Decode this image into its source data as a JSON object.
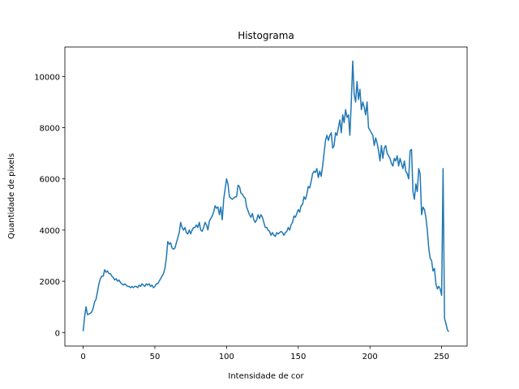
{
  "chart_data": {
    "type": "line",
    "title": "Histograma",
    "xlabel": "Intensidade de cor",
    "ylabel": "Quantidade de pixels",
    "color": "#1f77b4",
    "grid": false,
    "xlim": [
      -12.75,
      267.75
    ],
    "ylim": [
      -530,
      11150
    ],
    "xticks": [
      0,
      50,
      100,
      150,
      200,
      250
    ],
    "yticks": [
      0,
      2000,
      4000,
      6000,
      8000,
      10000
    ],
    "x": [
      0,
      1,
      2,
      3,
      4,
      5,
      6,
      7,
      8,
      9,
      10,
      11,
      12,
      13,
      14,
      15,
      16,
      17,
      18,
      19,
      20,
      21,
      22,
      23,
      24,
      25,
      26,
      27,
      28,
      29,
      30,
      31,
      32,
      33,
      34,
      35,
      36,
      37,
      38,
      39,
      40,
      41,
      42,
      43,
      44,
      45,
      46,
      47,
      48,
      49,
      50,
      51,
      52,
      53,
      54,
      55,
      56,
      57,
      58,
      59,
      60,
      61,
      62,
      63,
      64,
      65,
      66,
      67,
      68,
      69,
      70,
      71,
      72,
      73,
      74,
      75,
      76,
      77,
      78,
      79,
      80,
      81,
      82,
      83,
      84,
      85,
      86,
      87,
      88,
      89,
      90,
      91,
      92,
      93,
      94,
      95,
      96,
      97,
      98,
      99,
      100,
      101,
      102,
      103,
      104,
      105,
      106,
      107,
      108,
      109,
      110,
      111,
      112,
      113,
      114,
      115,
      116,
      117,
      118,
      119,
      120,
      121,
      122,
      123,
      124,
      125,
      126,
      127,
      128,
      129,
      130,
      131,
      132,
      133,
      134,
      135,
      136,
      137,
      138,
      139,
      140,
      141,
      142,
      143,
      144,
      145,
      146,
      147,
      148,
      149,
      150,
      151,
      152,
      153,
      154,
      155,
      156,
      157,
      158,
      159,
      160,
      161,
      162,
      163,
      164,
      165,
      166,
      167,
      168,
      169,
      170,
      171,
      172,
      173,
      174,
      175,
      176,
      177,
      178,
      179,
      180,
      181,
      182,
      183,
      184,
      185,
      186,
      187,
      188,
      189,
      190,
      191,
      192,
      193,
      194,
      195,
      196,
      197,
      198,
      199,
      200,
      201,
      202,
      203,
      204,
      205,
      206,
      207,
      208,
      209,
      210,
      211,
      212,
      213,
      214,
      215,
      216,
      217,
      218,
      219,
      220,
      221,
      222,
      223,
      224,
      225,
      226,
      227,
      228,
      229,
      230,
      231,
      232,
      233,
      234,
      235,
      236,
      237,
      238,
      239,
      240,
      241,
      242,
      243,
      244,
      245,
      246,
      247,
      248,
      249,
      250,
      251,
      252,
      253,
      254,
      255
    ],
    "values": [
      50,
      600,
      1000,
      700,
      720,
      750,
      800,
      950,
      1200,
      1300,
      1600,
      1900,
      2100,
      2200,
      2200,
      2450,
      2350,
      2400,
      2300,
      2300,
      2200,
      2150,
      2050,
      2100,
      2000,
      2050,
      1950,
      1900,
      1850,
      1900,
      1850,
      1800,
      1800,
      1750,
      1800,
      1750,
      1800,
      1800,
      1750,
      1850,
      1800,
      1900,
      1850,
      1800,
      1900,
      1850,
      1900,
      1800,
      1850,
      1750,
      1800,
      1900,
      1900,
      2000,
      2100,
      2200,
      2300,
      2500,
      2900,
      3550,
      3450,
      3500,
      3300,
      3250,
      3300,
      3500,
      3700,
      3900,
      4300,
      4100,
      4000,
      4100,
      3900,
      3850,
      4000,
      3850,
      4000,
      4100,
      4100,
      4200,
      4100,
      4300,
      4000,
      3950,
      4100,
      4300,
      4200,
      4000,
      4350,
      4450,
      4550,
      4700,
      4950,
      4850,
      4900,
      4600,
      4900,
      4400,
      5200,
      5600,
      6000,
      5800,
      5300,
      5250,
      5200,
      5250,
      5300,
      5300,
      5750,
      5700,
      5450,
      5400,
      5300,
      5250,
      4900,
      4750,
      4600,
      4500,
      4650,
      4400,
      4300,
      4400,
      4600,
      4450,
      4600,
      4500,
      4300,
      4100,
      4100,
      4000,
      3950,
      3800,
      3900,
      3800,
      3750,
      3900,
      3850,
      3900,
      3950,
      3900,
      3800,
      3900,
      3950,
      4100,
      4000,
      4200,
      4300,
      4550,
      4500,
      4650,
      4800,
      4700,
      4950,
      5000,
      5300,
      5200,
      5400,
      5700,
      5650,
      5900,
      6200,
      6300,
      6250,
      6400,
      6050,
      6300,
      6100,
      6500,
      7000,
      7500,
      7700,
      7500,
      7700,
      7800,
      7200,
      7300,
      7800,
      7700,
      8000,
      8300,
      7800,
      8500,
      8200,
      8700,
      8400,
      8500,
      7700,
      9000,
      10600,
      9300,
      9000,
      9800,
      9100,
      9500,
      8700,
      9000,
      8800,
      8500,
      9000,
      8000,
      7900,
      7800,
      7700,
      7300,
      7600,
      7400,
      7100,
      6700,
      7300,
      6800,
      7200,
      7300,
      7000,
      6900,
      6800,
      6600,
      6500,
      6800,
      6700,
      6900,
      6500,
      6800,
      6600,
      6400,
      6700,
      6300,
      6200,
      6000,
      7100,
      7150,
      5500,
      5200,
      5800,
      5500,
      6400,
      6200,
      4600,
      4900,
      4800,
      4500,
      4000,
      3300,
      2900,
      2800,
      2400,
      2500,
      1900,
      1700,
      1800,
      1700,
      1450,
      6400,
      550,
      350,
      100,
      30
    ]
  }
}
